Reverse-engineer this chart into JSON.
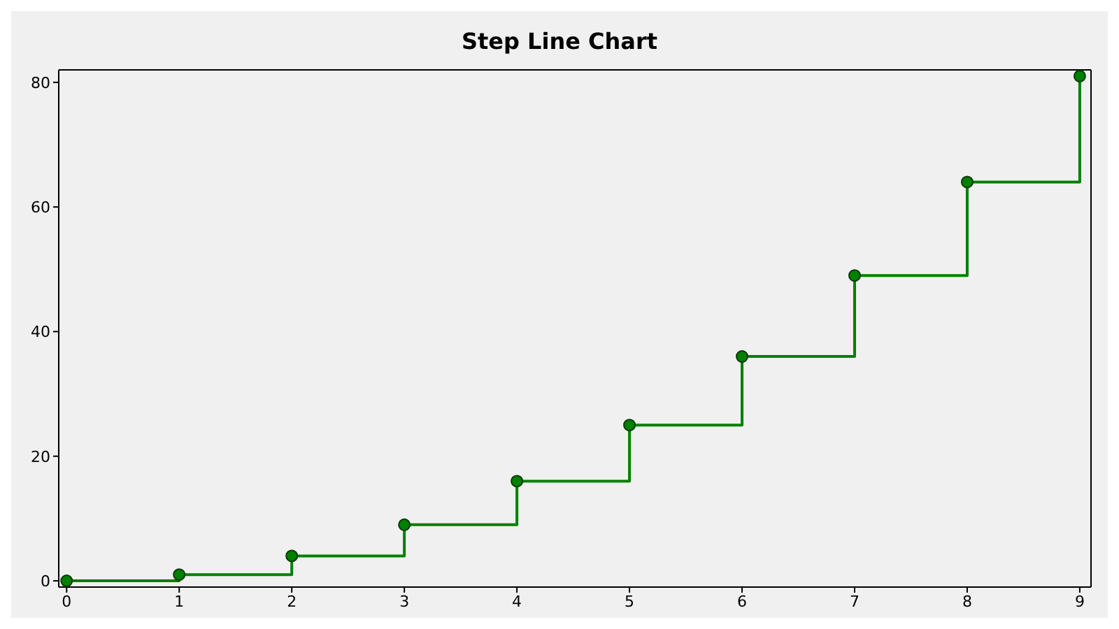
{
  "chart_data": {
    "type": "step",
    "title": "Step Line Chart",
    "x": [
      0,
      1,
      2,
      3,
      4,
      5,
      6,
      7,
      8,
      9
    ],
    "series": [
      {
        "color": "#008000",
        "values": [
          0,
          1,
          4,
          9,
          16,
          25,
          36,
          49,
          64,
          81
        ]
      }
    ],
    "xlim": [
      -0.07,
      9.1
    ],
    "xticks": [
      0,
      1,
      2,
      3,
      4,
      5,
      6,
      7,
      8,
      9
    ],
    "ylim": [
      -1,
      82
    ],
    "yticks": [
      0,
      20,
      40,
      60,
      80
    ],
    "marker": "circle",
    "line_style": "solid",
    "grid": false,
    "legend": false
  }
}
